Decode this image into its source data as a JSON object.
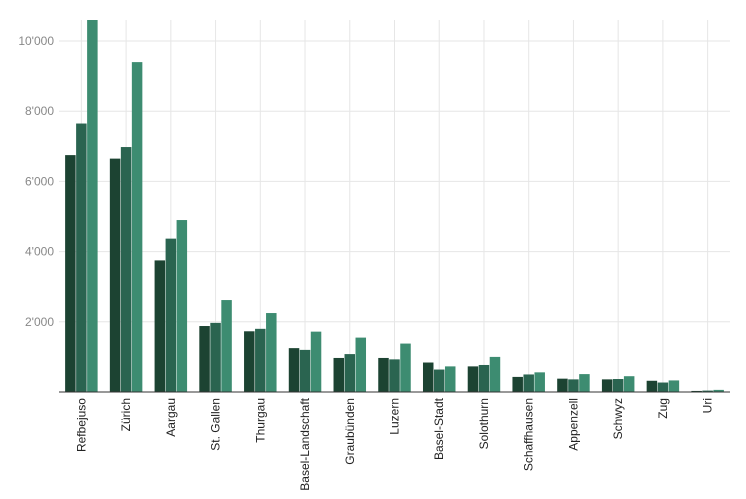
{
  "chart_data": {
    "type": "bar",
    "title": "",
    "xlabel": "",
    "ylabel": "",
    "categories": [
      "Refbejuso",
      "Zürich",
      "Aargau",
      "St. Gallen",
      "Thurgau",
      "Basel-Landschaft",
      "Graubünden",
      "Luzern",
      "Basel-Stadt",
      "Solothurn",
      "Schaffhausen",
      "Appenzell",
      "Schwyz",
      "Zug",
      "Uri"
    ],
    "series": [
      {
        "values": [
          6750,
          6650,
          3750,
          1880,
          1730,
          1250,
          970,
          970,
          840,
          730,
          430,
          380,
          360,
          320,
          30
        ],
        "color": "#1c4332"
      },
      {
        "values": [
          7650,
          6980,
          4370,
          1970,
          1800,
          1200,
          1080,
          930,
          640,
          770,
          500,
          360,
          370,
          270,
          40
        ],
        "color": "#2a6450"
      },
      {
        "values": [
          10600,
          9400,
          4900,
          2620,
          2250,
          1720,
          1550,
          1380,
          730,
          1000,
          560,
          510,
          450,
          330,
          60
        ],
        "color": "#3d8c71"
      }
    ],
    "ylim": [
      0,
      10600
    ],
    "yticks": [
      2000,
      4000,
      6000,
      8000,
      10000
    ],
    "ytick_labels": [
      "2'000",
      "4'000",
      "6'000",
      "8'000",
      "10'000"
    ],
    "grid": true,
    "legend": "none"
  }
}
